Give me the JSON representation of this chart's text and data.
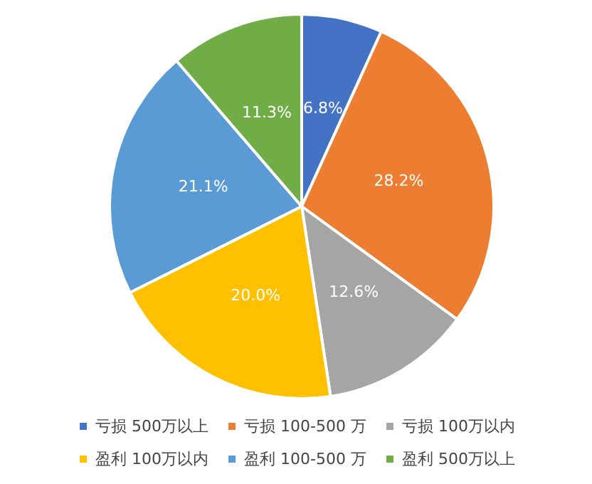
{
  "chart_data": {
    "type": "pie",
    "categories": [
      "亏损 500万以上",
      "亏损 100-500 万",
      "亏损 100万以内",
      "盈利 100万以内",
      "盈利 100-500 万",
      "盈利 500万以上"
    ],
    "values": [
      6.8,
      28.2,
      12.6,
      20.0,
      21.1,
      11.3
    ],
    "colors": [
      "#4472c4",
      "#ed7d31",
      "#a5a5a5",
      "#ffc000",
      "#5b9bd5",
      "#70ad47"
    ],
    "value_labels": [
      "6.8%",
      "28.2%",
      "12.6%",
      "20.0%",
      "21.1%",
      "11.3%"
    ],
    "legend": "bottom"
  }
}
